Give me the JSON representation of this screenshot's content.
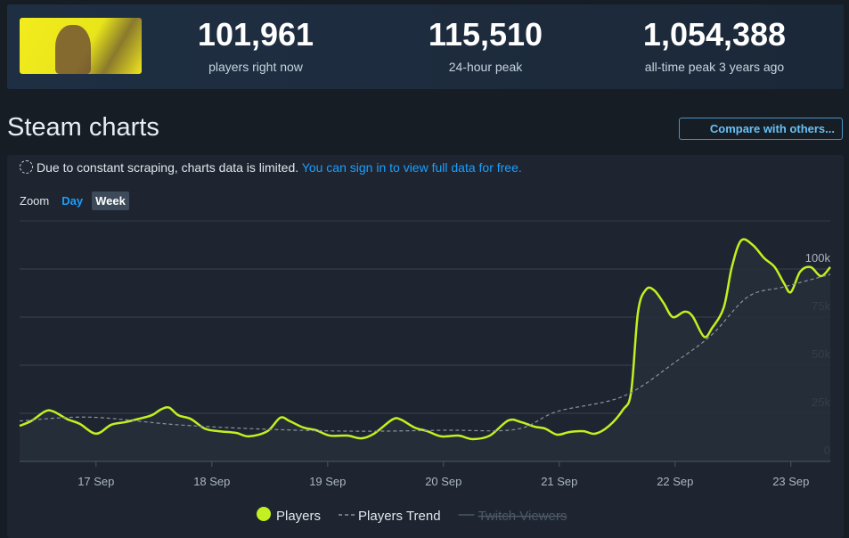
{
  "stats": [
    {
      "value": "101,961",
      "label": "players right now"
    },
    {
      "value": "115,510",
      "label": "24-hour peak"
    },
    {
      "value": "1,054,388",
      "label": "all-time peak 3 years ago"
    }
  ],
  "heading": "Steam charts",
  "compare_button": "Compare with others...",
  "notice": {
    "text": "Due to constant scraping, charts data is limited.",
    "link": "You can sign in to view full data for free."
  },
  "zoom": {
    "label": "Zoom",
    "options": [
      "Day",
      "Week"
    ]
  },
  "chart_data": {
    "type": "line",
    "xlim": [
      16.34,
      23.34
    ],
    "xticks": [
      {
        "value": 17,
        "label": "17 Sep"
      },
      {
        "value": 18,
        "label": "18 Sep"
      },
      {
        "value": 19,
        "label": "19 Sep"
      },
      {
        "value": 20,
        "label": "20 Sep"
      },
      {
        "value": 21,
        "label": "21 Sep"
      },
      {
        "value": 22,
        "label": "22 Sep"
      },
      {
        "value": 23,
        "label": "23 Sep"
      }
    ],
    "ylim": [
      0,
      125000
    ],
    "yticks": [
      0,
      {
        "value": 25000,
        "label": "25k"
      },
      {
        "value": 50000,
        "label": "50k"
      },
      {
        "value": 75000,
        "label": "75k"
      },
      {
        "value": 100000,
        "label": "100k"
      }
    ],
    "grid": true,
    "series": [
      {
        "name": "Players",
        "color": "#c3f020",
        "style": "solid",
        "x": [
          16.34,
          16.44,
          16.56,
          16.63,
          16.75,
          16.86,
          17.0,
          17.13,
          17.25,
          17.36,
          17.48,
          17.56,
          17.63,
          17.71,
          17.82,
          17.94,
          18.06,
          18.21,
          18.32,
          18.48,
          18.59,
          18.67,
          18.79,
          18.9,
          19.02,
          19.17,
          19.29,
          19.4,
          19.56,
          19.63,
          19.75,
          19.86,
          19.98,
          20.13,
          20.25,
          20.4,
          20.56,
          20.67,
          20.79,
          20.88,
          20.98,
          21.09,
          21.21,
          21.31,
          21.43,
          21.55,
          21.62,
          21.68,
          21.75,
          21.82,
          21.9,
          21.98,
          22.08,
          22.15,
          22.25,
          22.32,
          22.42,
          22.49,
          22.57,
          22.67,
          22.77,
          22.86,
          22.94,
          23.0,
          23.08,
          23.17,
          23.26,
          23.34
        ],
        "values": [
          18500,
          21000,
          26000,
          26000,
          22000,
          19500,
          14400,
          19000,
          20400,
          22000,
          24000,
          27000,
          28000,
          24000,
          22000,
          17000,
          15700,
          14800,
          13000,
          15700,
          22700,
          21000,
          17600,
          16200,
          13400,
          13400,
          12000,
          14400,
          21800,
          21800,
          17600,
          15700,
          13000,
          13400,
          11600,
          13400,
          21300,
          20400,
          18000,
          17000,
          13900,
          15300,
          15700,
          14400,
          18500,
          26900,
          36000,
          77800,
          89400,
          88900,
          82400,
          75000,
          77800,
          75500,
          64800,
          69400,
          80000,
          101000,
          114800,
          112500,
          105600,
          101000,
          92600,
          88000,
          98600,
          101000,
          96300,
          101000
        ]
      },
      {
        "name": "Players Trend",
        "color": "#8a939c",
        "style": "dashed",
        "x": [
          16.34,
          16.94,
          17.71,
          18.48,
          19.25,
          20.02,
          20.63,
          20.98,
          21.55,
          22.01,
          22.32,
          22.63,
          22.94,
          23.34
        ],
        "values": [
          21000,
          23000,
          19000,
          16700,
          15700,
          16200,
          16700,
          25900,
          33800,
          52000,
          66000,
          85600,
          90700,
          97200
        ]
      }
    ],
    "hidden_series": [
      {
        "name": "Twitch Viewers",
        "color": "#4b5866"
      }
    ]
  }
}
